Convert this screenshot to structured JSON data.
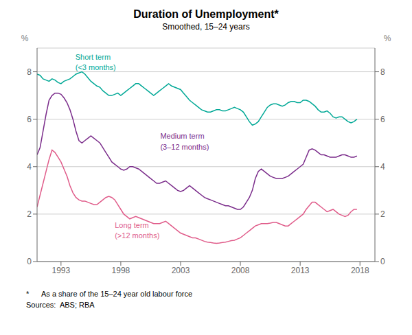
{
  "chart_data": {
    "type": "line",
    "title": "Duration of Unemployment*",
    "subtitle": "Smoothed, 15–24 years",
    "ylabel": "%",
    "y2label": "%",
    "footnote": "*      As a share of the 15–24 year old labour force",
    "source": "Sources:  ABS; RBA",
    "grid": true,
    "xlim": [
      1991.0,
      2019.25
    ],
    "xticks": [
      1993,
      1998,
      2003,
      2008,
      2013,
      2018
    ],
    "ylim": [
      0,
      9
    ],
    "yticks": [
      0,
      2,
      4,
      6,
      8
    ],
    "y2lim": [
      0,
      9
    ],
    "y2ticks": [
      0,
      2,
      4,
      6,
      8
    ],
    "x": [
      1991.0,
      1991.25,
      1991.5,
      1991.75,
      1992.0,
      1992.25,
      1992.5,
      1992.75,
      1993.0,
      1993.25,
      1993.5,
      1993.75,
      1994.0,
      1994.25,
      1994.5,
      1994.75,
      1995.0,
      1995.25,
      1995.5,
      1995.75,
      1996.0,
      1996.25,
      1996.5,
      1996.75,
      1997.0,
      1997.25,
      1997.5,
      1997.75,
      1998.0,
      1998.25,
      1998.5,
      1998.75,
      1999.0,
      1999.25,
      1999.5,
      1999.75,
      2000.0,
      2000.25,
      2000.5,
      2000.75,
      2001.0,
      2001.25,
      2001.5,
      2001.75,
      2002.0,
      2002.25,
      2002.5,
      2002.75,
      2003.0,
      2003.25,
      2003.5,
      2003.75,
      2004.0,
      2004.25,
      2004.5,
      2004.75,
      2005.0,
      2005.25,
      2005.5,
      2005.75,
      2006.0,
      2006.25,
      2006.5,
      2006.75,
      2007.0,
      2007.25,
      2007.5,
      2007.75,
      2008.0,
      2008.25,
      2008.5,
      2008.75,
      2009.0,
      2009.25,
      2009.5,
      2009.75,
      2010.0,
      2010.25,
      2010.5,
      2010.75,
      2011.0,
      2011.25,
      2011.5,
      2011.75,
      2012.0,
      2012.25,
      2012.5,
      2012.75,
      2013.0,
      2013.25,
      2013.5,
      2013.75,
      2014.0,
      2014.25,
      2014.5,
      2014.75,
      2015.0,
      2015.25,
      2015.5,
      2015.75,
      2016.0,
      2016.25,
      2016.5,
      2016.75,
      2017.0,
      2017.25,
      2017.5,
      2017.75
    ],
    "series": [
      {
        "color": "#00A896",
        "values": [
          7.9,
          7.85,
          7.7,
          7.65,
          7.6,
          7.7,
          7.65,
          7.55,
          7.5,
          7.6,
          7.65,
          7.7,
          7.8,
          7.9,
          7.95,
          8.0,
          7.9,
          7.75,
          7.6,
          7.5,
          7.4,
          7.35,
          7.2,
          7.1,
          7.0,
          7.0,
          7.05,
          7.1,
          7.0,
          7.1,
          7.2,
          7.3,
          7.4,
          7.5,
          7.5,
          7.4,
          7.3,
          7.2,
          7.1,
          7.0,
          7.1,
          7.2,
          7.3,
          7.4,
          7.5,
          7.4,
          7.35,
          7.3,
          7.25,
          7.1,
          6.95,
          6.8,
          6.7,
          6.6,
          6.5,
          6.4,
          6.35,
          6.3,
          6.3,
          6.35,
          6.4,
          6.4,
          6.35,
          6.35,
          6.4,
          6.45,
          6.5,
          6.45,
          6.4,
          6.3,
          6.1,
          5.9,
          5.75,
          5.8,
          5.9,
          6.1,
          6.3,
          6.5,
          6.6,
          6.65,
          6.65,
          6.6,
          6.55,
          6.6,
          6.7,
          6.75,
          6.75,
          6.7,
          6.7,
          6.8,
          6.8,
          6.75,
          6.65,
          6.55,
          6.4,
          6.3,
          6.3,
          6.35,
          6.25,
          6.1,
          6.05,
          6.1,
          6.1,
          6.0,
          5.9,
          5.85,
          5.9,
          6.0
        ]
      },
      {
        "color": "#7B2D8B",
        "values": [
          4.5,
          4.8,
          5.5,
          6.2,
          6.8,
          7.0,
          7.1,
          7.1,
          7.05,
          6.9,
          6.7,
          6.4,
          6.0,
          5.5,
          5.1,
          5.0,
          5.1,
          5.2,
          5.3,
          5.2,
          5.1,
          5.0,
          4.8,
          4.6,
          4.4,
          4.2,
          4.1,
          4.0,
          3.9,
          3.85,
          3.9,
          4.0,
          4.0,
          3.95,
          3.9,
          3.8,
          3.7,
          3.6,
          3.5,
          3.4,
          3.3,
          3.3,
          3.35,
          3.4,
          3.3,
          3.2,
          3.1,
          3.0,
          2.95,
          3.0,
          3.1,
          3.2,
          3.1,
          3.0,
          2.9,
          2.8,
          2.7,
          2.65,
          2.6,
          2.55,
          2.5,
          2.45,
          2.4,
          2.35,
          2.35,
          2.3,
          2.25,
          2.2,
          2.2,
          2.3,
          2.5,
          2.7,
          3.0,
          3.5,
          3.8,
          3.9,
          3.8,
          3.7,
          3.6,
          3.55,
          3.5,
          3.5,
          3.5,
          3.55,
          3.6,
          3.7,
          3.8,
          3.9,
          4.0,
          4.1,
          4.4,
          4.7,
          4.75,
          4.7,
          4.6,
          4.5,
          4.5,
          4.45,
          4.4,
          4.4,
          4.4,
          4.45,
          4.5,
          4.5,
          4.45,
          4.4,
          4.4,
          4.45
        ]
      },
      {
        "color": "#E05C8A",
        "values": [
          2.3,
          2.8,
          3.3,
          3.8,
          4.3,
          4.7,
          4.6,
          4.4,
          4.2,
          3.9,
          3.6,
          3.2,
          2.9,
          2.7,
          2.6,
          2.55,
          2.55,
          2.5,
          2.45,
          2.4,
          2.4,
          2.5,
          2.6,
          2.7,
          2.75,
          2.7,
          2.6,
          2.4,
          2.2,
          2.0,
          1.9,
          1.8,
          1.85,
          1.9,
          1.85,
          1.8,
          1.75,
          1.7,
          1.65,
          1.6,
          1.6,
          1.6,
          1.65,
          1.7,
          1.6,
          1.5,
          1.4,
          1.3,
          1.2,
          1.15,
          1.1,
          1.05,
          1.0,
          1.0,
          0.95,
          0.9,
          0.85,
          0.82,
          0.8,
          0.78,
          0.77,
          0.78,
          0.8,
          0.82,
          0.85,
          0.88,
          0.9,
          0.95,
          1.0,
          1.1,
          1.2,
          1.3,
          1.4,
          1.5,
          1.55,
          1.6,
          1.6,
          1.6,
          1.62,
          1.65,
          1.65,
          1.6,
          1.55,
          1.5,
          1.5,
          1.6,
          1.7,
          1.8,
          1.9,
          2.0,
          2.2,
          2.35,
          2.5,
          2.5,
          2.4,
          2.3,
          2.2,
          2.1,
          2.15,
          2.2,
          2.1,
          2.0,
          1.95,
          1.9,
          1.95,
          2.1,
          2.2,
          2.2
        ]
      }
    ],
    "annotations": [
      {
        "text": "Short term\n(<3 months)",
        "x": 1994.2,
        "y": 8.75,
        "color": "#00A896"
      },
      {
        "text": "Medium term\n(3–12 months)",
        "x": 2001.3,
        "y": 5.4,
        "color": "#7B2D8B"
      },
      {
        "text": "Long term\n(>12 months)",
        "x": 1997.5,
        "y": 1.65,
        "color": "#E05C8A"
      }
    ]
  }
}
